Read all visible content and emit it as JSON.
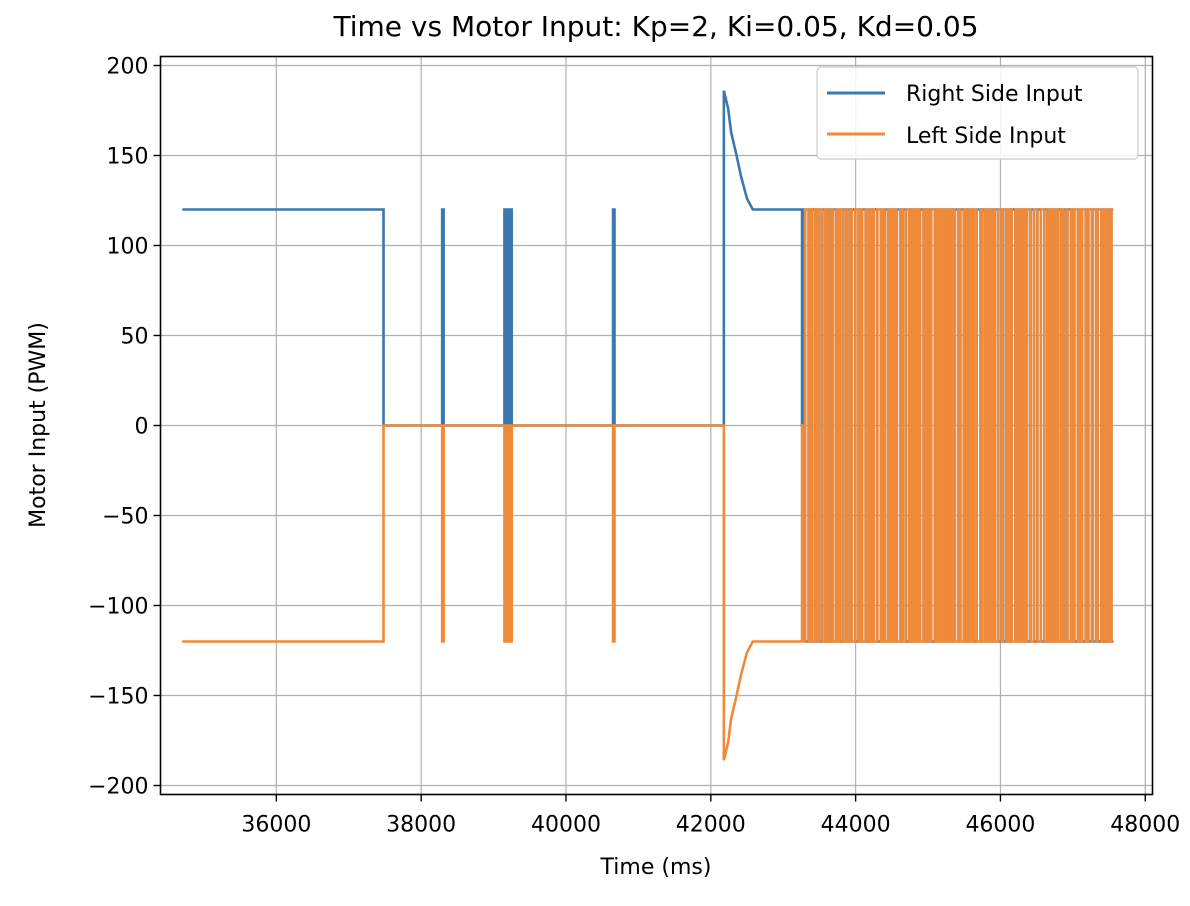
{
  "chart_data": {
    "type": "line",
    "title": "Time vs Motor Input: Kp=2, Ki=0.05, Kd=0.05",
    "xlabel": "Time (ms)",
    "ylabel": "Motor Input (PWM)",
    "xlim": [
      34400,
      48100
    ],
    "ylim": [
      -205,
      205
    ],
    "xticks": [
      36000,
      38000,
      40000,
      42000,
      44000,
      46000,
      48000
    ],
    "yticks": [
      200,
      150,
      100,
      50,
      0,
      -50,
      -100,
      -150,
      -200
    ],
    "xtick_labels": [
      "36000",
      "38000",
      "40000",
      "42000",
      "44000",
      "46000",
      "48000"
    ],
    "ytick_labels": [
      "200",
      "150",
      "100",
      "50",
      "0",
      "−50",
      "−100",
      "−150",
      "−200"
    ],
    "grid": true,
    "legend_position": "upper-right",
    "series": [
      {
        "name": "Right Side Input",
        "color": "#3a78b0",
        "x": [
          34700,
          37480,
          37480,
          38290,
          38290,
          38310,
          38310,
          39150,
          39150,
          39160,
          39160,
          39175,
          39175,
          39190,
          39190,
          39205,
          39205,
          39220,
          39220,
          39235,
          39235,
          39250,
          39250,
          39265,
          39265,
          40650,
          40650,
          40670,
          40670,
          42180,
          42180,
          42240,
          42280,
          42350,
          42420,
          42500,
          42580,
          43260,
          43260,
          43290
        ],
        "values": [
          120,
          120,
          0,
          0,
          120,
          120,
          0,
          0,
          120,
          120,
          0,
          0,
          120,
          120,
          0,
          0,
          120,
          120,
          0,
          0,
          120,
          120,
          0,
          0,
          0,
          0,
          120,
          120,
          0,
          0,
          186,
          176,
          163,
          151,
          138,
          126,
          120,
          120,
          0,
          0
        ]
      },
      {
        "name": "Left Side Input",
        "color": "#ef8a3a",
        "x": [
          34700,
          37480,
          37480,
          38290,
          38290,
          38310,
          38310,
          39150,
          39150,
          39160,
          39160,
          39175,
          39175,
          39190,
          39190,
          39205,
          39205,
          39220,
          39220,
          39235,
          39235,
          39250,
          39250,
          39265,
          39265,
          40650,
          40650,
          40670,
          40670,
          42180,
          42180,
          42240,
          42280,
          42350,
          42420,
          42500,
          42580,
          43260,
          43260,
          43290
        ],
        "values": [
          -120,
          -120,
          0,
          0,
          -120,
          -120,
          0,
          0,
          -120,
          -120,
          0,
          0,
          -120,
          -120,
          0,
          0,
          -120,
          -120,
          0,
          0,
          -120,
          -120,
          0,
          0,
          0,
          0,
          -120,
          -120,
          0,
          0,
          -186,
          -176,
          -163,
          -151,
          -138,
          -126,
          -120,
          -120,
          0,
          0
        ]
      }
    ],
    "oscillation": {
      "x_start": 43290,
      "x_end": 47560,
      "high": 120,
      "low": -120,
      "note": "rapid switching between high and low for both series"
    }
  }
}
